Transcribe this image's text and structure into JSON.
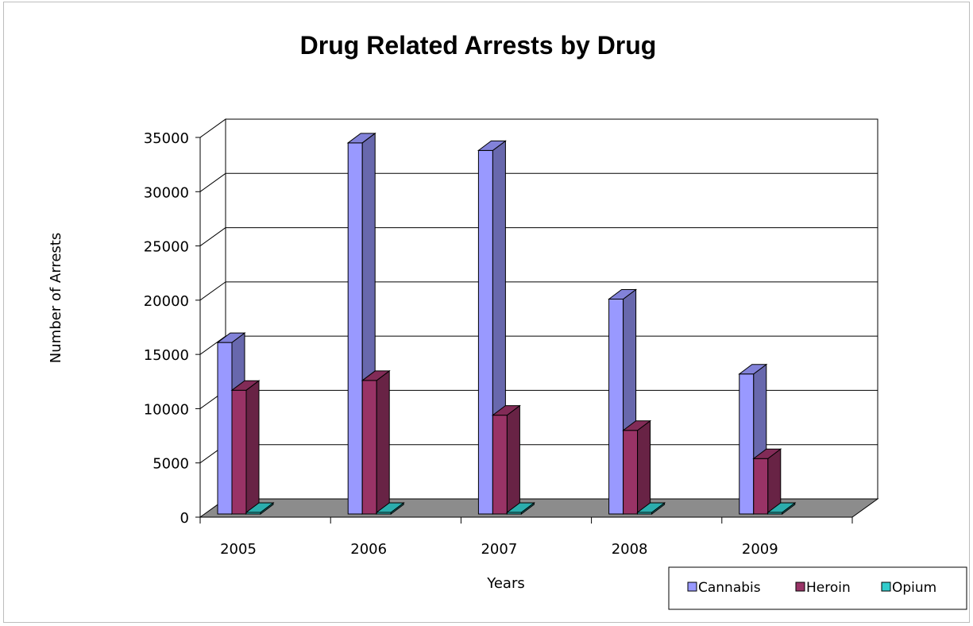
{
  "chart_data": {
    "type": "bar",
    "title": "Drug Related Arrests by Drug",
    "xlabel": "Years",
    "ylabel": "Number of Arrests",
    "categories": [
      "2005",
      "2006",
      "2007",
      "2008",
      "2009"
    ],
    "ylim": [
      0,
      35000
    ],
    "yticks": [
      0,
      5000,
      10000,
      15000,
      20000,
      25000,
      30000,
      35000
    ],
    "grid": true,
    "legend_position": "bottom-right",
    "series": [
      {
        "name": "Cannabis",
        "color": "#9999ff",
        "values": [
          16100,
          34500,
          33800,
          20100,
          13200
        ]
      },
      {
        "name": "Heroin",
        "color": "#993366",
        "values": [
          11700,
          12600,
          9400,
          8000,
          5400
        ]
      },
      {
        "name": "Opium",
        "color": "#33cccc",
        "values": [
          50,
          50,
          50,
          50,
          50
        ]
      }
    ]
  }
}
